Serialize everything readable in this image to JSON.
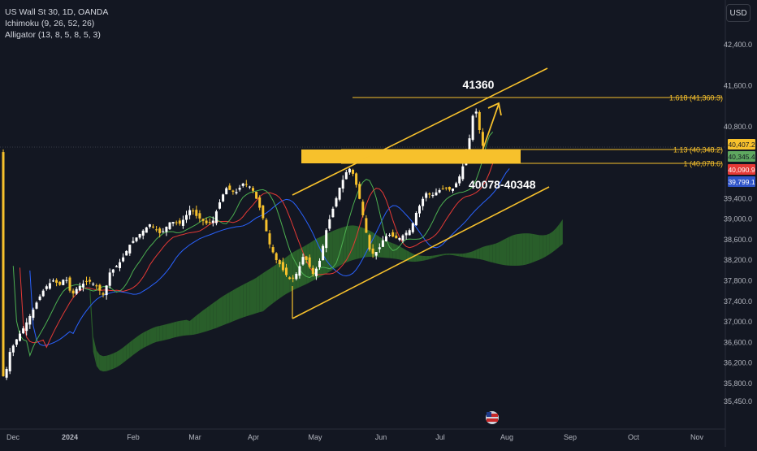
{
  "legend": {
    "symbol": "US Wall St 30, 1D, OANDA",
    "ichimoku": "Ichimoku (9, 26, 52, 26)",
    "alligator": "Alligator (13, 8, 5, 8, 5, 3)"
  },
  "currency_button": "USD",
  "chart_data": {
    "type": "candlestick",
    "y_ticks": [
      "42,400.0",
      "41,600.0",
      "40,800.0",
      "39,400.0",
      "39,000.0",
      "38,600.0",
      "38,200.0",
      "37,800.0",
      "37,400.0",
      "37,000.0",
      "36,600.0",
      "36,200.0",
      "35,800.0",
      "35,450.0"
    ],
    "x_ticks": [
      "Dec",
      "2024",
      "Feb",
      "Mar",
      "Apr",
      "May",
      "Jun",
      "Jul",
      "Aug",
      "Sep",
      "Oct",
      "Nov"
    ],
    "price_tags": [
      {
        "text": "40,407.2",
        "color": "#f7c12c",
        "text_color": "#131722"
      },
      {
        "text": "40,345.4",
        "color": "#5fa860",
        "text_color": "#131722"
      },
      {
        "text": "40,090.9",
        "color": "#e53935",
        "text_color": "#ffffff"
      },
      {
        "text": "39,799.1",
        "color": "#2f54c8",
        "text_color": "#ffffff"
      }
    ],
    "fib_levels": [
      {
        "label": "1.618 (41,360.3)",
        "value": 41360.3
      },
      {
        "label": "1.13 (40,348.2)",
        "value": 40348.2
      },
      {
        "label": "1 (40,078.6)",
        "value": 40078.6
      }
    ],
    "annotations": {
      "peak_label": "41360",
      "zone_label": "40078-40348"
    },
    "colors": {
      "background": "#131722",
      "candle_up": "#ffffff",
      "candle_down": "#f7c12c",
      "drawing": "#f7c12c",
      "kumo_bull": "#2e6b2c",
      "kumo_bear": "#7a2330",
      "jaw": "#2962ff",
      "teeth": "#e53935",
      "lips": "#4caf50"
    }
  }
}
